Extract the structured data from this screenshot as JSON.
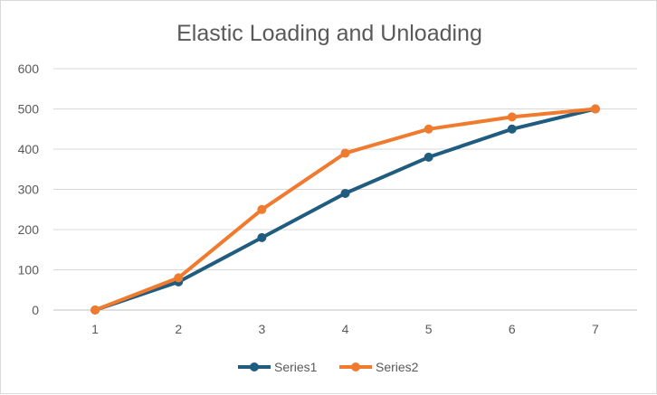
{
  "chart_data": {
    "type": "line",
    "title": "Elastic Loading and Unloading",
    "xlabel": "",
    "ylabel": "",
    "x": [
      1,
      2,
      3,
      4,
      5,
      6,
      7
    ],
    "x_tick_labels": [
      "1",
      "2",
      "3",
      "4",
      "5",
      "6",
      "7"
    ],
    "y_tick_labels": [
      "0",
      "100",
      "200",
      "300",
      "400",
      "500",
      "600"
    ],
    "y_ticks": [
      0,
      100,
      200,
      300,
      400,
      500,
      600
    ],
    "ylim": [
      0,
      600
    ],
    "grid": true,
    "legend_position": "bottom",
    "series": [
      {
        "name": "Series1",
        "color": "#1f5c80",
        "values": [
          0,
          70,
          180,
          290,
          380,
          450,
          500
        ]
      },
      {
        "name": "Series2",
        "color": "#f07b2e",
        "values": [
          0,
          80,
          250,
          390,
          450,
          480,
          500
        ]
      }
    ]
  },
  "colors": {
    "gridline": "#d9d9d9",
    "axis": "#bfbfbf",
    "text": "#595959"
  }
}
